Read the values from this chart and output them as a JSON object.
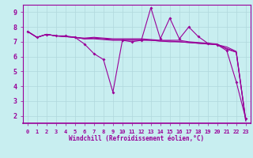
{
  "xlabel": "Windchill (Refroidissement éolien,°C)",
  "background_color": "#c8eef0",
  "grid_color": "#b0d8dc",
  "line_color": "#990099",
  "spine_color": "#990099",
  "xlim": [
    -0.5,
    23.5
  ],
  "ylim": [
    1.5,
    9.5
  ],
  "yticks": [
    2,
    3,
    4,
    5,
    6,
    7,
    8,
    9
  ],
  "xticks": [
    0,
    1,
    2,
    3,
    4,
    5,
    6,
    7,
    8,
    9,
    10,
    11,
    12,
    13,
    14,
    15,
    16,
    17,
    18,
    19,
    20,
    21,
    22,
    23
  ],
  "series": [
    {
      "x": [
        0,
        1,
        2,
        3,
        4,
        5,
        6,
        7,
        8,
        9,
        10,
        11,
        12,
        13,
        14,
        15,
        16,
        17,
        18,
        19,
        20,
        21,
        22,
        23
      ],
      "y": [
        7.7,
        7.3,
        7.5,
        7.4,
        7.4,
        7.3,
        6.85,
        6.2,
        5.8,
        3.6,
        7.1,
        7.0,
        7.1,
        9.3,
        7.2,
        8.6,
        7.2,
        8.0,
        7.35,
        6.9,
        6.8,
        6.4,
        4.3,
        1.8
      ],
      "has_markers": true
    },
    {
      "x": [
        0,
        1,
        2,
        3,
        4,
        5,
        6,
        7,
        8,
        9,
        10,
        11,
        12,
        13,
        14,
        15,
        16,
        17,
        18,
        19,
        20,
        21,
        22,
        23
      ],
      "y": [
        7.7,
        7.3,
        7.5,
        7.4,
        7.35,
        7.3,
        7.2,
        7.2,
        7.15,
        7.1,
        7.1,
        7.1,
        7.1,
        7.1,
        7.05,
        7.0,
        7.0,
        6.95,
        6.9,
        6.85,
        6.8,
        6.65,
        6.35,
        1.75
      ],
      "has_markers": false
    },
    {
      "x": [
        0,
        1,
        2,
        3,
        4,
        5,
        6,
        7,
        8,
        9,
        10,
        11,
        12,
        13,
        14,
        15,
        16,
        17,
        18,
        19,
        20,
        21,
        22,
        23
      ],
      "y": [
        7.7,
        7.3,
        7.5,
        7.4,
        7.35,
        7.3,
        7.2,
        7.25,
        7.2,
        7.15,
        7.15,
        7.15,
        7.15,
        7.1,
        7.05,
        7.05,
        7.0,
        6.95,
        6.9,
        6.85,
        6.8,
        6.55,
        6.3,
        1.7
      ],
      "has_markers": false
    },
    {
      "x": [
        0,
        1,
        2,
        3,
        4,
        5,
        6,
        7,
        8,
        9,
        10,
        11,
        12,
        13,
        14,
        15,
        16,
        17,
        18,
        19,
        20,
        21,
        22,
        23
      ],
      "y": [
        7.7,
        7.3,
        7.5,
        7.4,
        7.35,
        7.3,
        7.25,
        7.3,
        7.25,
        7.2,
        7.2,
        7.2,
        7.2,
        7.15,
        7.1,
        7.1,
        7.1,
        7.0,
        6.95,
        6.9,
        6.85,
        6.5,
        6.3,
        1.65
      ],
      "has_markers": false
    }
  ]
}
